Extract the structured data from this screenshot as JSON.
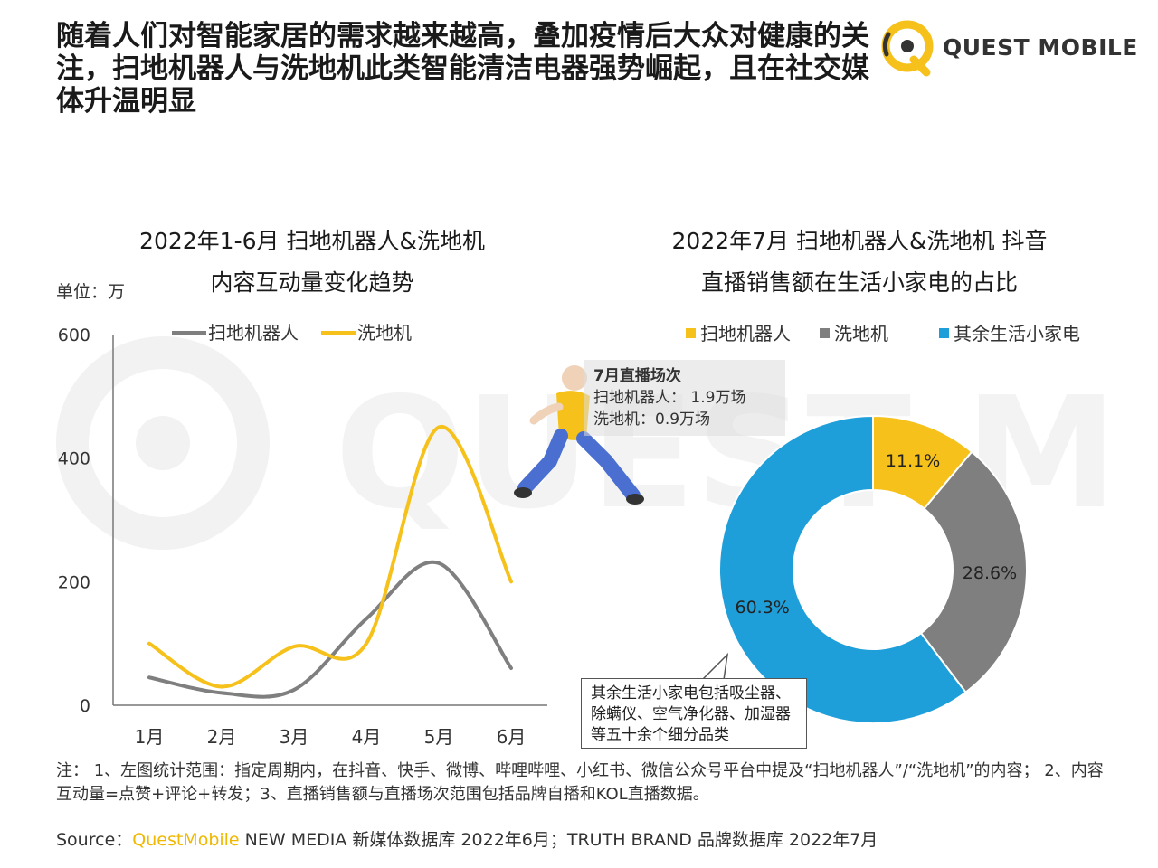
{
  "headline": "随着人们对智能家居的需求越来越高，叠加疫情后大众对健康的关注，扫地机器人与洗地机此类智能清洁电器强势崛起，且在社交媒体升温明显",
  "logo": {
    "text": "QUEST MOBILE",
    "watermark_text": "QUEST MOBILE"
  },
  "colors": {
    "yellow": "#f5c11a",
    "gray": "#7f7f7f",
    "blue": "#1f9fd9",
    "accent": "#f0b800"
  },
  "left_chart": {
    "title_line1": "2022年1-6月 扫地机器人&洗地机",
    "title_line2": "内容互动量变化趋势",
    "unit": "单位：万"
  },
  "right_chart": {
    "title_line1": "2022年7月 扫地机器人&洗地机 抖音",
    "title_line2": "直播销售额在生活小家电的占比"
  },
  "tooltip": {
    "title": "7月直播场次",
    "line1": "扫地机器人： 1.9万场",
    "line2": "洗地机：0.9万场"
  },
  "callout": {
    "text": "其余生活小家电包括吸尘器、除螨仪、空气净化器、加湿器等五十余个细分品类"
  },
  "note": "注： 1、左图统计范围：指定周期内，在抖音、快手、微博、哔哩哔哩、小红书、微信公众号平台中提及“扫地机器人”/“洗地机”的内容； 2、内容互动量=点赞+评论+转发；3、直播销售额与直播场次范围包括品牌自播和KOL直播数据。",
  "source": {
    "prefix": "Source：",
    "brand": "QuestMobile",
    "rest": " NEW MEDIA 新媒体数据库 2022年6月；TRUTH BRAND 品牌数据库 2022年7月"
  },
  "chart_data": [
    {
      "type": "line",
      "categories": [
        "1月",
        "2月",
        "3月",
        "4月",
        "5月",
        "6月"
      ],
      "series": [
        {
          "name": "扫地机器人",
          "color": "#7f7f7f",
          "values": [
            45,
            20,
            25,
            140,
            230,
            60
          ]
        },
        {
          "name": "洗地机",
          "color": "#f5c11a",
          "values": [
            100,
            30,
            95,
            100,
            450,
            200
          ]
        }
      ],
      "yticks": [
        0,
        200,
        400,
        600
      ],
      "ylim": [
        0,
        600
      ],
      "legend_position": "top",
      "grid": false
    },
    {
      "type": "pie",
      "donut": true,
      "slices": [
        {
          "label": "扫地机器人",
          "value": 11.1,
          "display": "11.1%",
          "color": "#f5c11a"
        },
        {
          "label": "洗地机",
          "value": 28.6,
          "display": "28.6%",
          "color": "#7f7f7f"
        },
        {
          "label": "其余生活小家电",
          "value": 60.3,
          "display": "60.3%",
          "color": "#1f9fd9"
        }
      ],
      "legend_position": "top"
    }
  ]
}
